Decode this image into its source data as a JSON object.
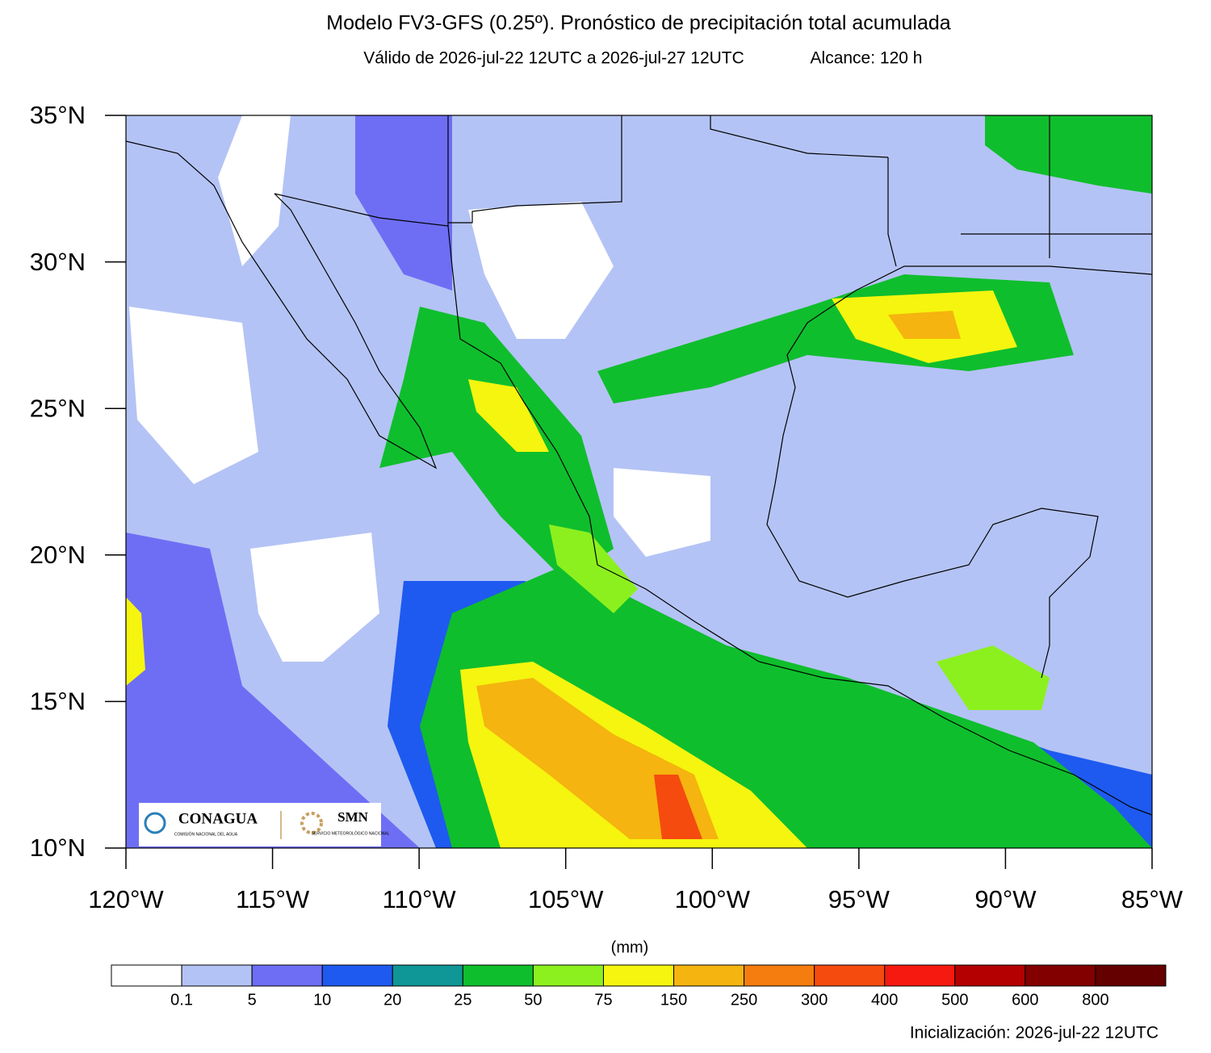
{
  "header": {
    "title": "Modelo FV3-GFS (0.25º). Pronóstico de precipitación total acumulada",
    "subtitle": "Válido de 2026-jul-22 12UTC a 2026-jul-27 12UTC",
    "range": "Alcance: 120 h"
  },
  "map": {
    "lat_labels": [
      "35°N",
      "30°N",
      "25°N",
      "20°N",
      "15°N",
      "10°N"
    ],
    "lon_labels": [
      "120°W",
      "115°W",
      "110°W",
      "105°W",
      "100°W",
      "95°W",
      "90°W",
      "85°W"
    ]
  },
  "logos": {
    "conagua": "CONAGUA",
    "conagua_sub": "COMISIÓN NACIONAL DEL AGUA",
    "smn": "SMN",
    "smn_sub": "SERVICIO METEOROLÓGICO NACIONAL"
  },
  "colorbar": {
    "unit": "(mm)",
    "labels": [
      "0.1",
      "5",
      "10",
      "20",
      "25",
      "50",
      "75",
      "150",
      "250",
      "300",
      "400",
      "500",
      "600",
      "800"
    ],
    "colors": [
      "#ffffff",
      "#b4c3f5",
      "#6e6ef5",
      "#1e5af0",
      "#0f9696",
      "#0fbe2d",
      "#8cf01e",
      "#f5f50f",
      "#f5b40f",
      "#f57d0f",
      "#f54b0f",
      "#f5190f",
      "#b40000",
      "#820000",
      "#640000"
    ]
  },
  "footer": "Inicialización: 2026-jul-22 12UTC"
}
